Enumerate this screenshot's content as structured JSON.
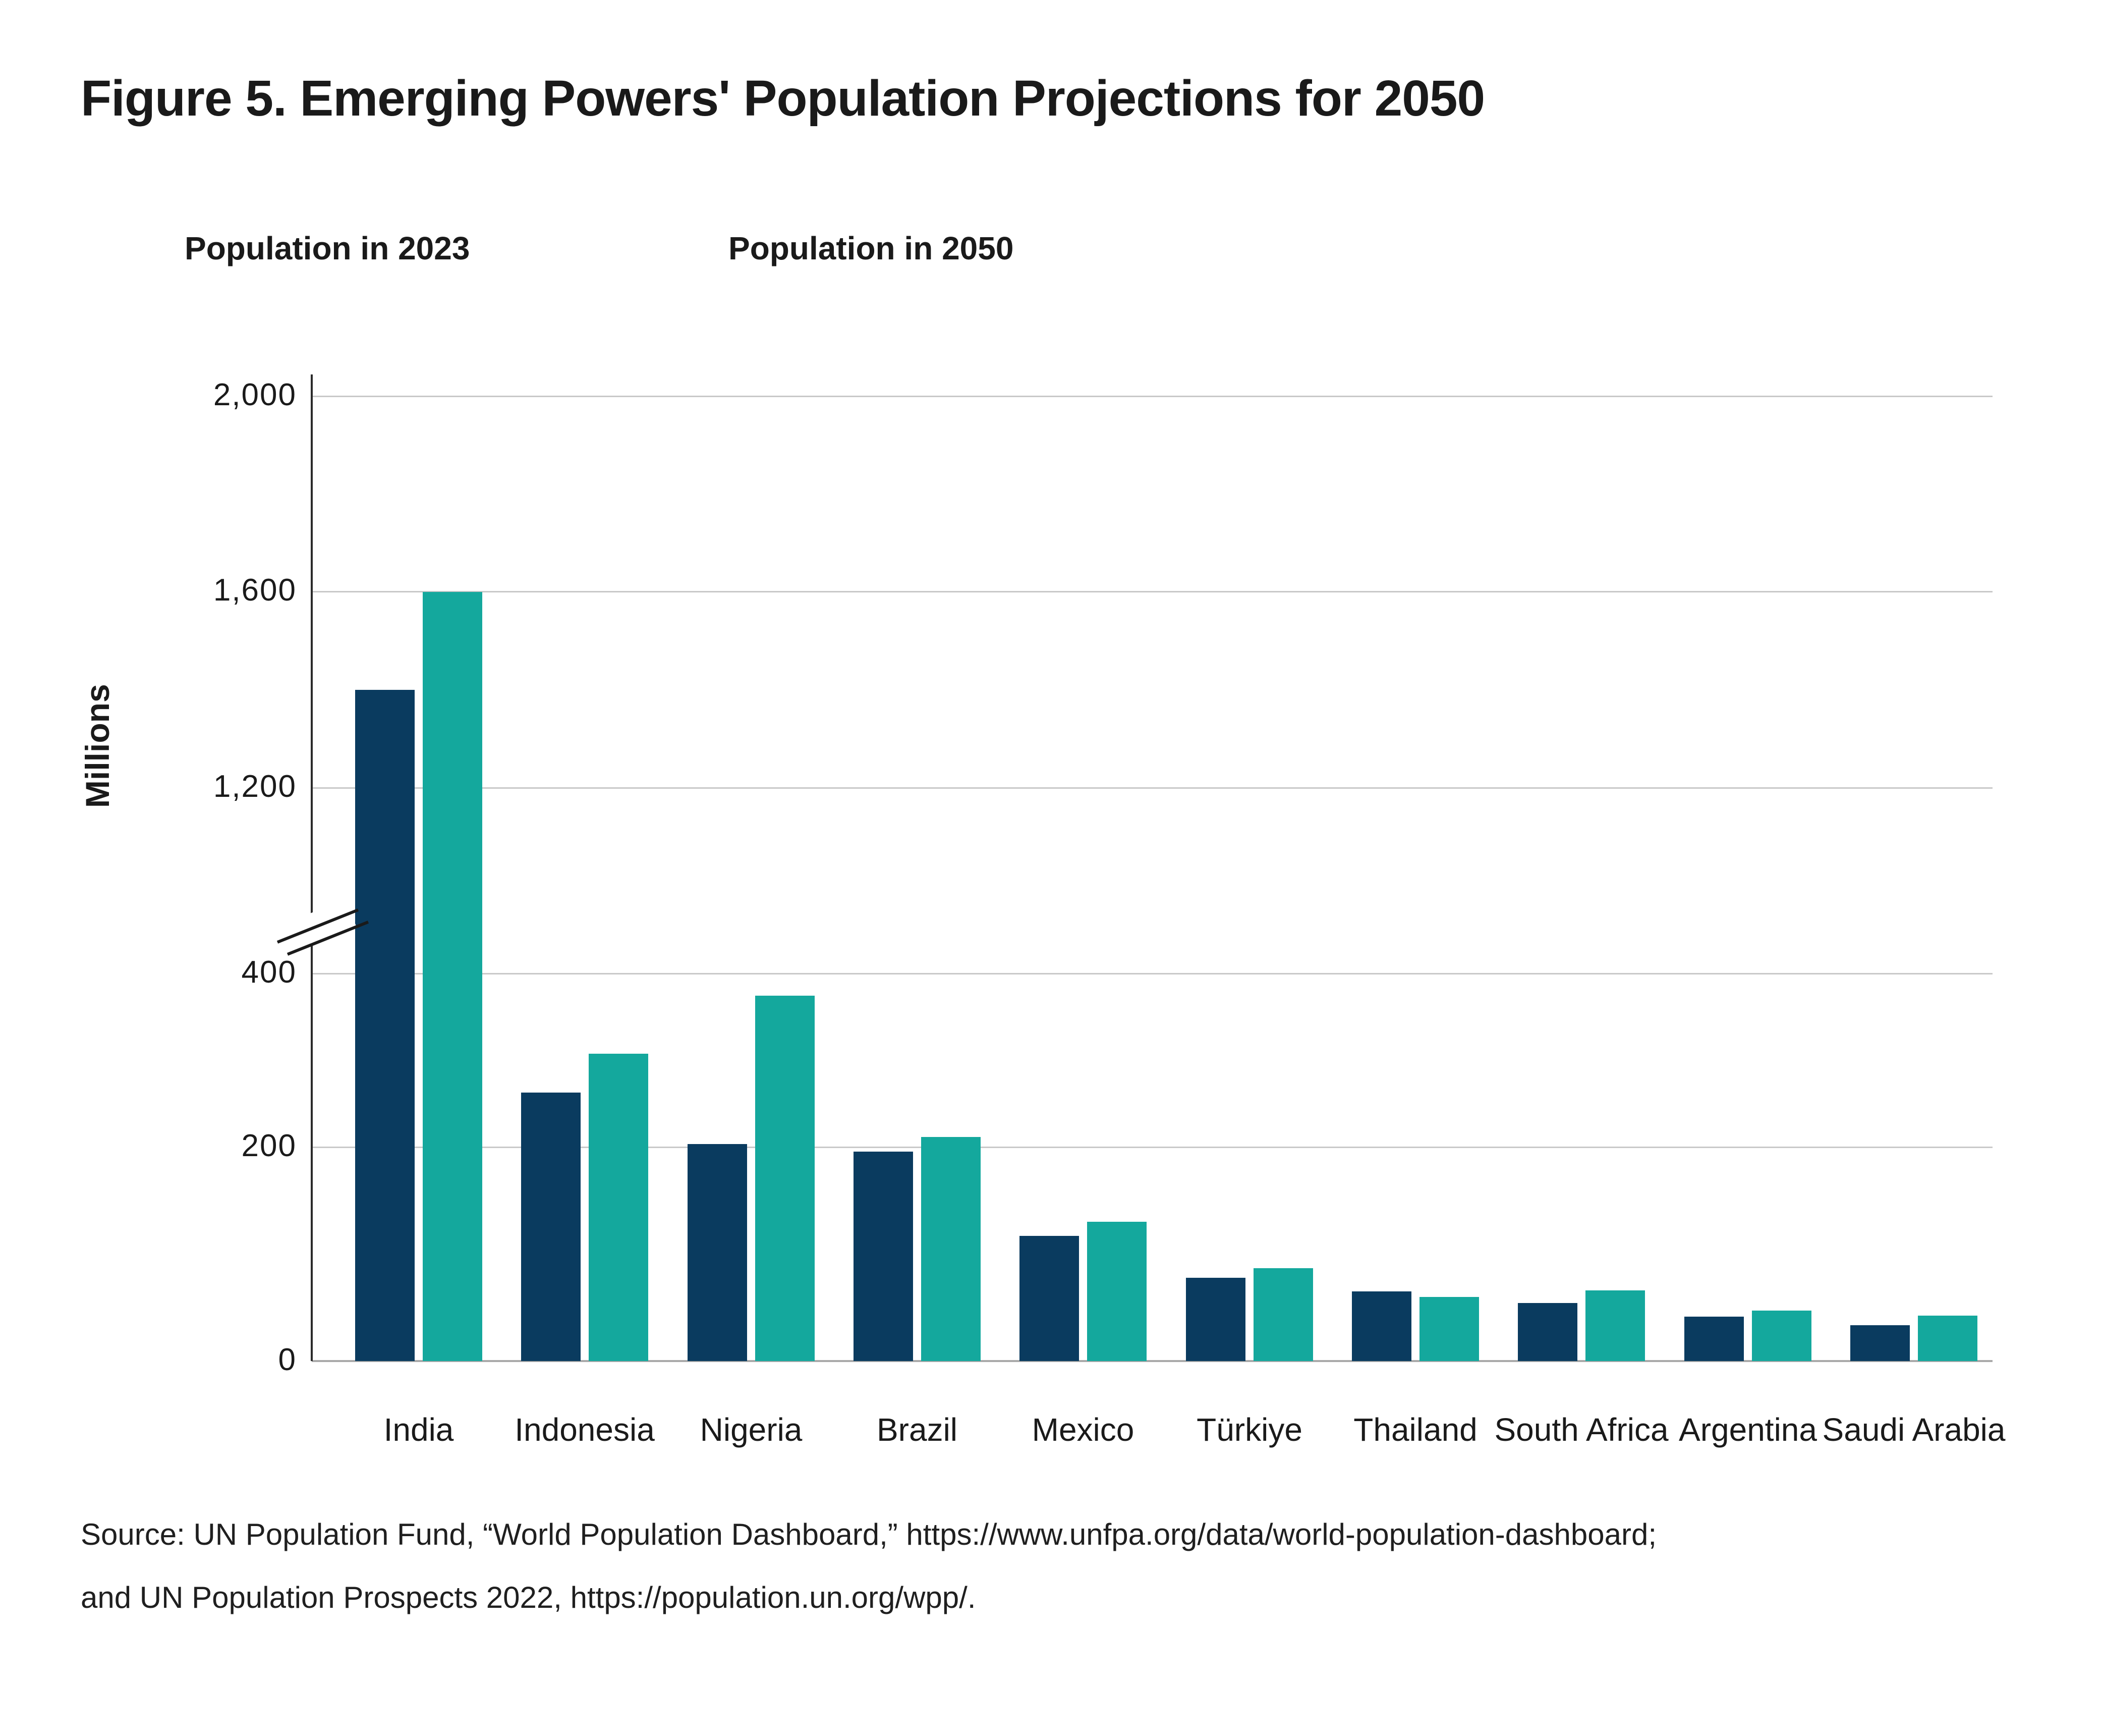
{
  "figure": {
    "title": "Figure 5. Emerging Powers' Population Projections for 2050",
    "source_line1": "Source: UN Population Fund, “World Population Dashboard,” https://www.unfpa.org/data/world-population-dashboard;",
    "source_line2": "and UN Population Prospects 2022,  https://population.un.org/wpp/."
  },
  "colors": {
    "series_2023": "#0a3b5f",
    "series_2050": "#14a89d",
    "gridline": "#c9c9c9",
    "axis": "#2b2b2b",
    "text": "#1a1a1a"
  },
  "chart_data": {
    "type": "bar",
    "title": "Figure 5. Emerging Powers' Population Projections for 2050",
    "xlabel": "",
    "ylabel": "Millions",
    "categories": [
      "India",
      "Indonesia",
      "Nigeria",
      "Brazil",
      "Mexico",
      "Türkiye",
      "Thailand",
      "South Africa",
      "Argentina",
      "Saudi Arabia"
    ],
    "series": [
      {
        "name": "Population in 2023",
        "color": "#0a3b5f",
        "values": [
          1400,
          277,
          224,
          216,
          129,
          86,
          72,
          60,
          46,
          37
        ]
      },
      {
        "name": "Population in 2050",
        "color": "#14a89d",
        "values": [
          1600,
          317,
          377,
          231,
          144,
          96,
          66,
          73,
          52,
          47
        ]
      }
    ],
    "y_axis": {
      "unit": "millions",
      "ticks_lower_section": [
        0,
        200,
        400
      ],
      "ticks_upper_section": [
        1200,
        1600,
        2000
      ],
      "axis_break_between": [
        400,
        1200
      ],
      "ylim": [
        0,
        2000
      ],
      "grid": true
    },
    "legend_position": "top-left"
  }
}
